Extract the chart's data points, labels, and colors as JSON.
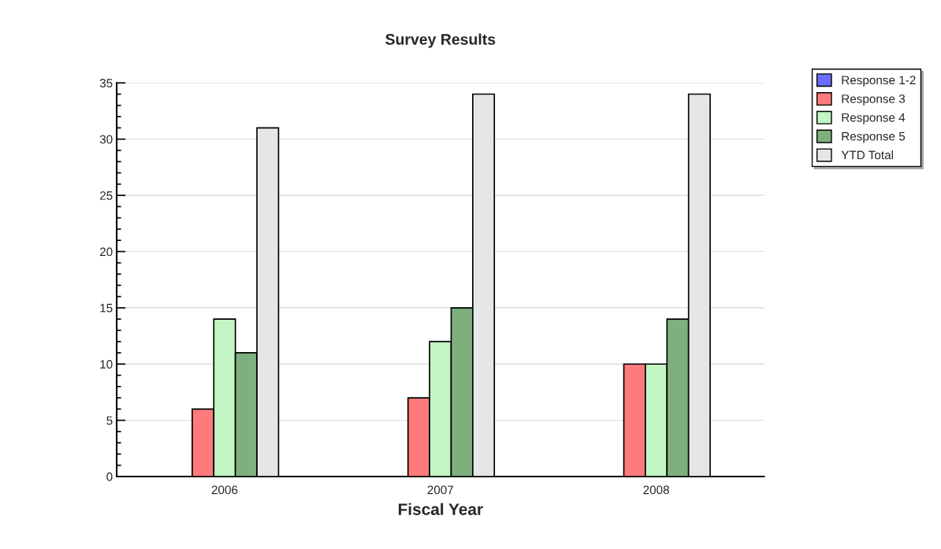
{
  "chart_data": {
    "type": "bar",
    "title": "Survey Results",
    "xlabel": "Fiscal Year",
    "categories": [
      "2006",
      "2007",
      "2008"
    ],
    "series": [
      {
        "name": "Response 1-2",
        "color": "#6b6bff",
        "values": [
          null,
          null,
          null
        ]
      },
      {
        "name": "Response 3",
        "color": "#ff7b7b",
        "values": [
          6,
          7,
          10
        ]
      },
      {
        "name": "Response 4",
        "color": "#c4f5c4",
        "values": [
          14,
          12,
          10
        ]
      },
      {
        "name": "Response 5",
        "color": "#7db07d",
        "values": [
          11,
          15,
          14
        ]
      },
      {
        "name": "YTD Total",
        "color": "#e6e6e6",
        "values": [
          31,
          34,
          34
        ]
      }
    ],
    "ylim": [
      0,
      35
    ],
    "yticks": [
      0,
      5,
      10,
      15,
      20,
      25,
      30,
      35
    ],
    "grid": "y",
    "legend": "top right"
  }
}
